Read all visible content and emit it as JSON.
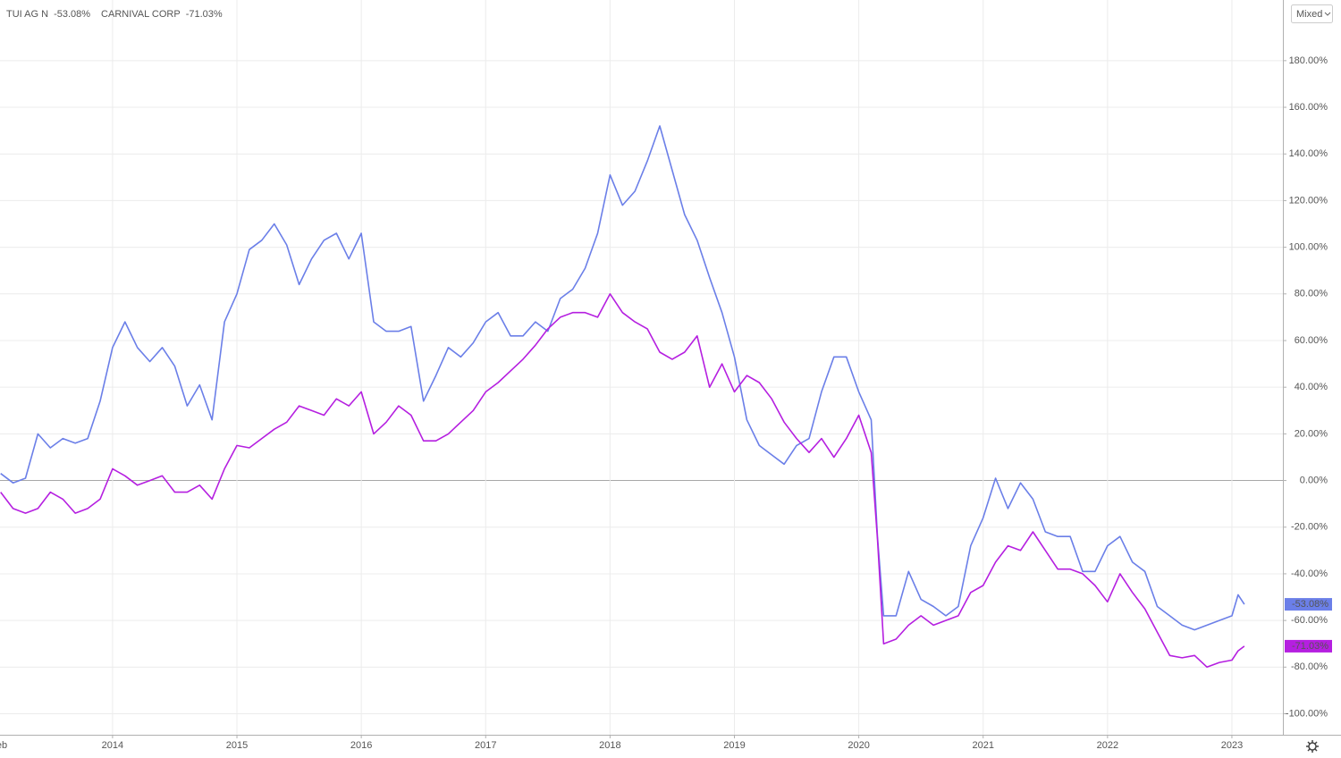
{
  "chart_data": {
    "type": "line",
    "ui": {
      "scale_button": "Mixed"
    },
    "x": [
      2013.1,
      2013.2,
      2013.3,
      2013.4,
      2013.5,
      2013.6,
      2013.7,
      2013.8,
      2013.9,
      2014.0,
      2014.1,
      2014.2,
      2014.3,
      2014.4,
      2014.5,
      2014.6,
      2014.7,
      2014.8,
      2014.9,
      2015.0,
      2015.1,
      2015.2,
      2015.3,
      2015.4,
      2015.5,
      2015.6,
      2015.7,
      2015.8,
      2015.9,
      2016.0,
      2016.1,
      2016.2,
      2016.3,
      2016.4,
      2016.5,
      2016.6,
      2016.7,
      2016.8,
      2016.9,
      2017.0,
      2017.1,
      2017.2,
      2017.3,
      2017.4,
      2017.5,
      2017.6,
      2017.7,
      2017.8,
      2017.9,
      2018.0,
      2018.1,
      2018.2,
      2018.3,
      2018.4,
      2018.5,
      2018.6,
      2018.7,
      2018.8,
      2018.9,
      2019.0,
      2019.1,
      2019.2,
      2019.3,
      2019.4,
      2019.5,
      2019.6,
      2019.7,
      2019.8,
      2019.9,
      2020.0,
      2020.1,
      2020.15,
      2020.2,
      2020.3,
      2020.4,
      2020.5,
      2020.6,
      2020.7,
      2020.8,
      2020.9,
      2021.0,
      2021.1,
      2021.2,
      2021.3,
      2021.4,
      2021.5,
      2021.6,
      2021.7,
      2021.8,
      2021.9,
      2022.0,
      2022.1,
      2022.2,
      2022.3,
      2022.4,
      2022.5,
      2022.6,
      2022.7,
      2022.8,
      2022.9,
      2023.0,
      2023.05,
      2023.1
    ],
    "series": [
      {
        "name": "TUI AG N",
        "color": "#6b7fe8",
        "last_label": "-53.08%",
        "values": [
          3,
          -1,
          1,
          20,
          14,
          18,
          16,
          18,
          34,
          57,
          68,
          57,
          51,
          57,
          49,
          32,
          41,
          26,
          68,
          80,
          99,
          103,
          110,
          101,
          84,
          95,
          103,
          106,
          95,
          106,
          68,
          64,
          64,
          66,
          34,
          45,
          57,
          53,
          59,
          68,
          72,
          62,
          62,
          68,
          64,
          78,
          82,
          91,
          106,
          131,
          118,
          124,
          137,
          152,
          133,
          114,
          103,
          87,
          72,
          53,
          26,
          15,
          11,
          7,
          15,
          18,
          38,
          53,
          53,
          38,
          26,
          -24,
          -58,
          -58,
          -39,
          -51,
          -54,
          -58,
          -54,
          -28,
          -16,
          1,
          -12,
          -1,
          -8,
          -22,
          -24,
          -24,
          -39,
          -39,
          -28,
          -24,
          -35,
          -39,
          -54,
          -58,
          -62,
          -64,
          -62,
          -60,
          -58,
          -49,
          -53.08
        ]
      },
      {
        "name": "CARNIVAL CORP",
        "color": "#b51fe0",
        "last_label": "-71.03%",
        "values": [
          -5,
          -12,
          -14,
          -12,
          -5,
          -8,
          -14,
          -12,
          -8,
          5,
          2,
          -2,
          0,
          2,
          -5,
          -5,
          -2,
          -8,
          5,
          15,
          14,
          18,
          22,
          25,
          32,
          30,
          28,
          35,
          32,
          38,
          20,
          25,
          32,
          28,
          17,
          17,
          20,
          25,
          30,
          38,
          42,
          47,
          52,
          58,
          65,
          70,
          72,
          72,
          70,
          80,
          72,
          68,
          65,
          55,
          52,
          55,
          62,
          40,
          50,
          38,
          45,
          42,
          35,
          25,
          18,
          12,
          18,
          10,
          18,
          28,
          12,
          -25,
          -70,
          -68,
          -62,
          -58,
          -62,
          -60,
          -58,
          -48,
          -45,
          -35,
          -28,
          -30,
          -22,
          -30,
          -38,
          -38,
          -40,
          -45,
          -52,
          -40,
          -48,
          -55,
          -65,
          -75,
          -76,
          -75,
          -80,
          -78,
          -77,
          -73,
          -71.03
        ]
      }
    ],
    "xlim": [
      2013.095,
      2023.41
    ],
    "xticks": [
      {
        "value": 2013.085,
        "label": "Feb"
      },
      2014,
      2015,
      2016,
      2017,
      2018,
      2019,
      2020,
      2021,
      2022,
      2023
    ],
    "ylim": [
      -109,
      206
    ],
    "yticks": [
      {
        "value": -100,
        "label": "-100.00%"
      },
      {
        "value": -80,
        "label": "-80.00%"
      },
      {
        "value": -60,
        "label": "-60.00%"
      },
      {
        "value": -40,
        "label": "-40.00%"
      },
      {
        "value": -20,
        "label": "-20.00%"
      },
      {
        "value": 0,
        "label": "0.00%"
      },
      {
        "value": 20,
        "label": "20.00%"
      },
      {
        "value": 40,
        "label": "40.00%"
      },
      {
        "value": 60,
        "label": "60.00%"
      },
      {
        "value": 80,
        "label": "80.00%"
      },
      {
        "value": 100,
        "label": "100.00%"
      },
      {
        "value": 120,
        "label": "120.00%"
      },
      {
        "value": 140,
        "label": "140.00%"
      },
      {
        "value": 160,
        "label": "160.00%"
      },
      {
        "value": 180,
        "label": "180.00%"
      }
    ],
    "grid": true
  }
}
